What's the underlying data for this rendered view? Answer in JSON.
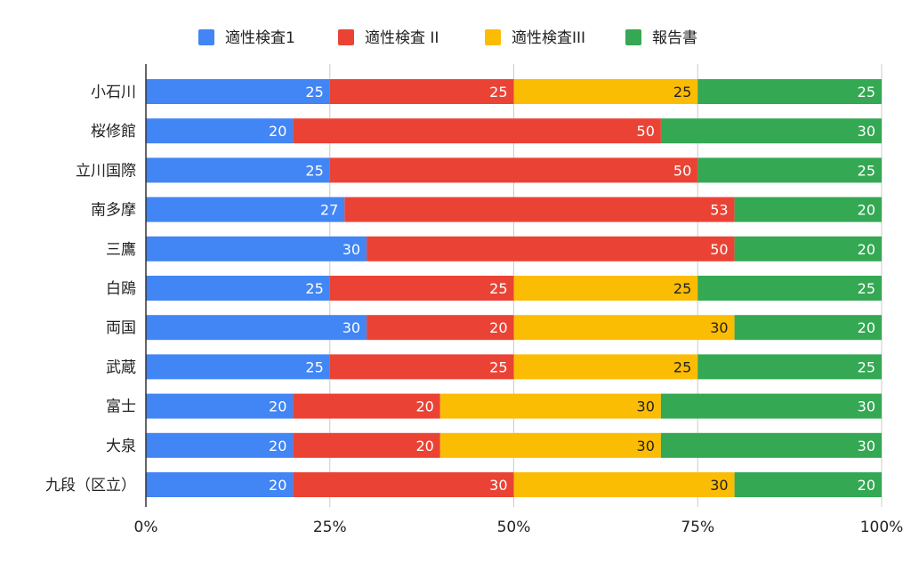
{
  "chart_data": {
    "type": "bar",
    "orientation": "horizontal",
    "stacked": "percent",
    "legend_position": "top",
    "grid": true,
    "xlim": [
      0,
      100
    ],
    "x_ticks": [
      "0%",
      "25%",
      "50%",
      "75%",
      "100%"
    ],
    "categories": [
      "小石川",
      "桜修館",
      "立川国際",
      "南多摩",
      "三鷹",
      "白鴎",
      "両国",
      "武蔵",
      "富士",
      "大泉",
      "九段（区立）"
    ],
    "series": [
      {
        "name": "適性検査1",
        "color": "#4285F4",
        "label_color": "#ffffff",
        "values": [
          25,
          20,
          25,
          27,
          30,
          25,
          30,
          25,
          20,
          20,
          20
        ]
      },
      {
        "name": "適性検査 II",
        "color": "#EA4335",
        "label_color": "#ffffff",
        "values": [
          25,
          50,
          50,
          53,
          50,
          25,
          20,
          25,
          20,
          20,
          30
        ]
      },
      {
        "name": "適性検査III",
        "color": "#FBBC04",
        "label_color": "#222222",
        "values": [
          25,
          0,
          0,
          0,
          0,
          25,
          30,
          25,
          30,
          30,
          30
        ]
      },
      {
        "name": "報告書",
        "color": "#34A853",
        "label_color": "#ffffff",
        "values": [
          25,
          30,
          25,
          20,
          20,
          25,
          20,
          25,
          30,
          30,
          20
        ]
      }
    ]
  }
}
